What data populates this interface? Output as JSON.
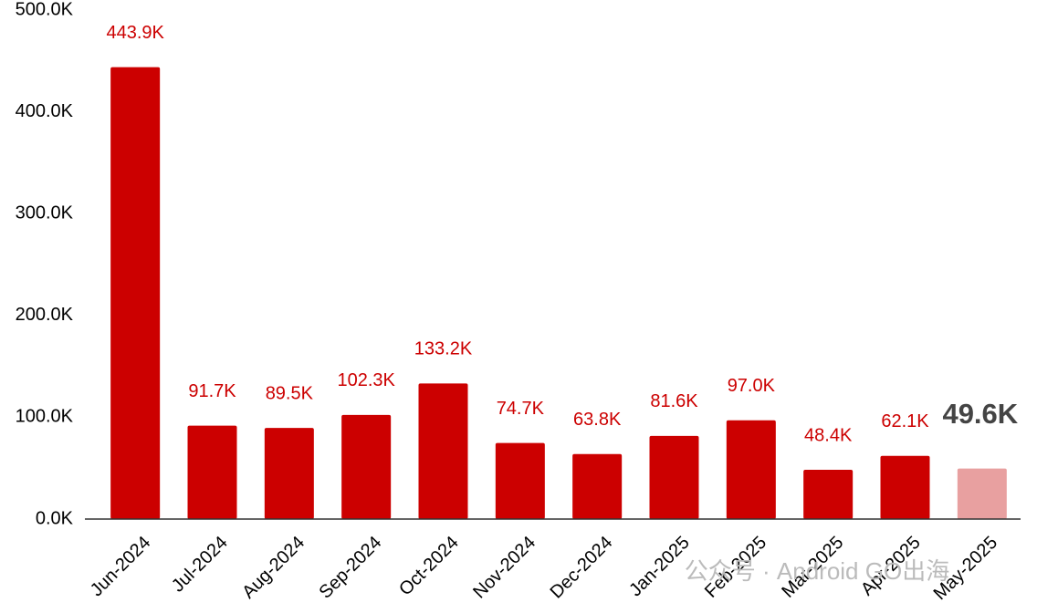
{
  "chart_data": {
    "type": "bar",
    "categories": [
      "Jun-2024",
      "Jul-2024",
      "Aug-2024",
      "Sep-2024",
      "Oct-2024",
      "Nov-2024",
      "Dec-2024",
      "Jan-2025",
      "Feb-2025",
      "Mar-2025",
      "Apr-2025",
      "May-2025"
    ],
    "values": [
      443900,
      91700,
      89500,
      102300,
      133200,
      74700,
      63800,
      81600,
      97000,
      48400,
      62100,
      49600
    ],
    "value_labels": [
      "443.9K",
      "91.7K",
      "89.5K",
      "102.3K",
      "133.2K",
      "74.7K",
      "63.8K",
      "81.6K",
      "97.0K",
      "48.4K",
      "62.1K",
      "49.6K"
    ],
    "colors": [
      "#cc0000",
      "#cc0000",
      "#cc0000",
      "#cc0000",
      "#cc0000",
      "#cc0000",
      "#cc0000",
      "#cc0000",
      "#cc0000",
      "#cc0000",
      "#cc0000",
      "#e8a0a0"
    ],
    "label_colors": [
      "#cc0000",
      "#cc0000",
      "#cc0000",
      "#cc0000",
      "#cc0000",
      "#cc0000",
      "#cc0000",
      "#cc0000",
      "#cc0000",
      "#cc0000",
      "#cc0000",
      "#444444"
    ],
    "ylim": [
      0,
      500000
    ],
    "yticks": [
      {
        "value": 0,
        "label": "0.0K"
      },
      {
        "value": 100000,
        "label": "100.0K"
      },
      {
        "value": 200000,
        "label": "200.0K"
      },
      {
        "value": 300000,
        "label": "300.0K"
      },
      {
        "value": 400000,
        "label": "400.0K"
      },
      {
        "value": 500000,
        "label": "500.0K"
      }
    ],
    "grid": false,
    "watermark": "公众号 · Android GO出海"
  }
}
